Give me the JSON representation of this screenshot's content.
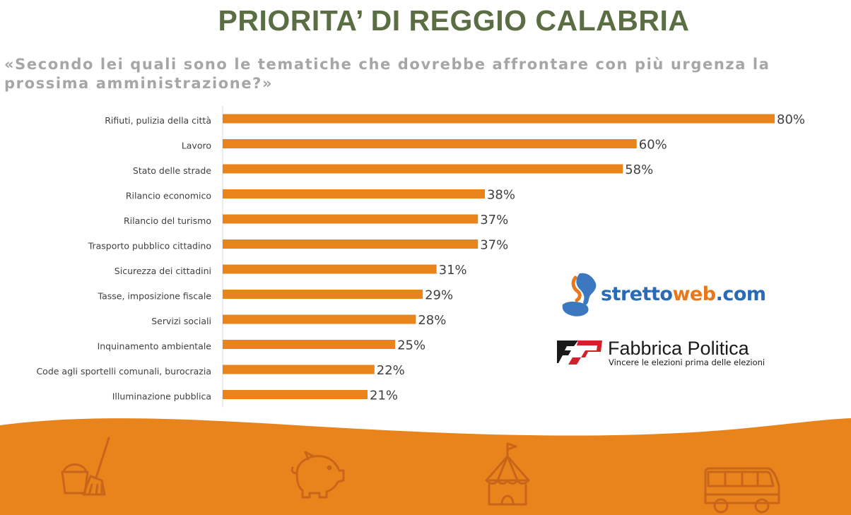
{
  "header": {
    "title": "PRIORITA’ DI REGGIO CALABRIA",
    "subtitle": "«Secondo lei quali sono le tematiche che dovrebbe affrontare con più urgenza la prossima amministrazione?»"
  },
  "chart_data": {
    "type": "bar",
    "orientation": "horizontal",
    "categories": [
      "Rifiuti, pulizia della città",
      "Lavoro",
      "Stato delle strade",
      "Rilancio economico",
      "Rilancio del turismo",
      "Trasporto pubblico cittadino",
      "Sicurezza dei cittadini",
      "Tasse, imposizione fiscale",
      "Servizi sociali",
      "Inquinamento ambientale",
      "Code agli sportelli comunali, burocrazia",
      "Illuminazione pubblica"
    ],
    "values": [
      80,
      60,
      58,
      38,
      37,
      37,
      31,
      29,
      28,
      25,
      22,
      21
    ],
    "value_labels": [
      "80%",
      "60%",
      "58%",
      "38%",
      "37%",
      "37%",
      "31%",
      "29%",
      "28%",
      "25%",
      "22%",
      "21%"
    ],
    "unit": "%",
    "xlim": [
      0,
      80
    ],
    "grid": false,
    "bar_color": "#e8841b"
  },
  "logos": {
    "strettoweb": {
      "part1": "stretto",
      "part2": "web",
      "part3": ".com"
    },
    "fabbrica": {
      "name": "Fabbrica Politica",
      "tagline": "Vincere le elezioni prima delle elezioni"
    }
  },
  "footer_icons": [
    "broom-bucket-icon",
    "piggy-bank-icon",
    "circus-tent-icon",
    "bus-icon"
  ],
  "colors": {
    "title": "#5b6e43",
    "subtitle": "#a6a6a6",
    "accent": "#e8841b",
    "footer": "#e8841b",
    "icon_stroke": "#c9651a"
  }
}
